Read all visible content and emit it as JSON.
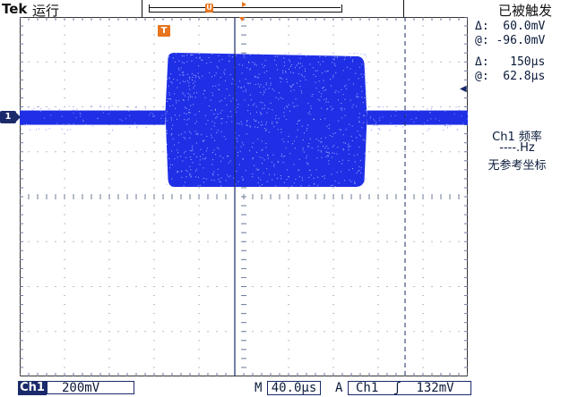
{
  "header": {
    "brand": "Tek",
    "run_state": "运行",
    "record_marker": "U",
    "trigger_state": "已被触发"
  },
  "graticule": {
    "trigger_marker": "T",
    "channel_marker": "1"
  },
  "waveform": {
    "baseline_level": 0.28,
    "burst_start_fraction": 0.325,
    "burst_end_fraction": 0.775,
    "color": "#1f2fe6"
  },
  "cursors": {
    "voltage_delta": "Δ:  60.0mV",
    "voltage_at": "@: -96.0mV",
    "time_delta": "Δ:   150μs",
    "time_at": "@:  62.8μs"
  },
  "measurement": {
    "title": "Ch1 频率",
    "value": "----.Hz",
    "note": "无参考坐标"
  },
  "status_bar": {
    "channel": "Ch1",
    "volts_per_div": "200mV",
    "horizontal_label": "M",
    "time_per_div": "40.0μs",
    "trigger_label": "A",
    "trigger_source": "Ch1",
    "trigger_slope": "ʃ",
    "trigger_level": "132mV"
  },
  "colors": {
    "grid": "#6f7a99",
    "dark": "#1a2a6a",
    "trigger": "#e8741e"
  }
}
